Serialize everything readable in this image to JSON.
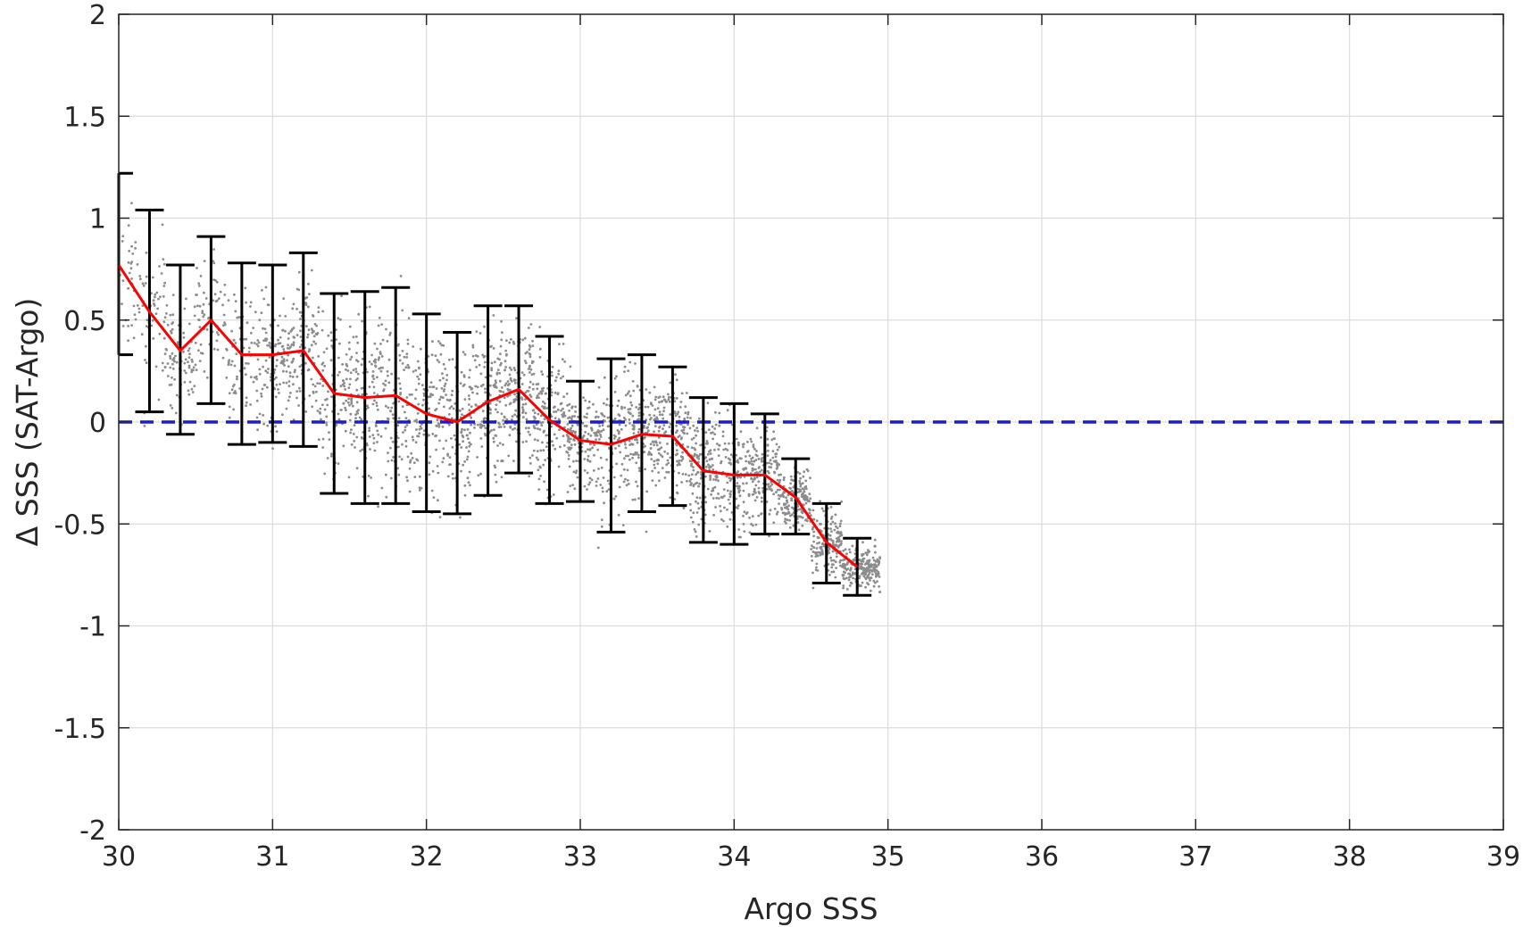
{
  "chart_data": {
    "type": "scatter",
    "title": "",
    "xlabel": "Argo SSS",
    "ylabel": "Δ SSS (SAT-Argo)",
    "xlim": [
      30,
      39
    ],
    "ylim": [
      -2,
      2
    ],
    "grid": true,
    "x_ticks": [
      "30",
      "31",
      "32",
      "33",
      "34",
      "35",
      "36",
      "37",
      "38",
      "39"
    ],
    "y_ticks": [
      "2",
      "1.5",
      "1",
      "0.5",
      "0",
      "-0.5",
      "-1",
      "-1.5",
      "-2"
    ],
    "reference_line": {
      "y": 0,
      "style": "dashed",
      "color": "#1a1adb"
    },
    "colors": {
      "scatter": "#8c8c8c",
      "mean_line": "#ff0000",
      "error_bars": "#000000",
      "grid": "#dcdcdc",
      "axes": "#262626"
    },
    "scatter": {
      "description_points": "dense cloud of individual collocation differences",
      "x_range": [
        30,
        34.9
      ],
      "trend": {
        "slope": -0.3,
        "intercept_at_30": 0.7,
        "spread": 0.45
      }
    },
    "binned_mean": {
      "x": [
        30.0,
        30.2,
        30.4,
        30.6,
        30.8,
        31.0,
        31.2,
        31.4,
        31.6,
        31.8,
        32.0,
        32.2,
        32.4,
        32.6,
        32.8,
        33.0,
        33.2,
        33.4,
        33.6,
        33.8,
        34.0,
        34.2,
        34.4,
        34.6,
        34.8
      ],
      "mean": [
        0.77,
        0.54,
        0.35,
        0.5,
        0.33,
        0.33,
        0.35,
        0.14,
        0.12,
        0.13,
        0.04,
        0.0,
        0.1,
        0.16,
        0.01,
        -0.09,
        -0.11,
        -0.06,
        -0.07,
        -0.24,
        -0.26,
        -0.26,
        -0.37,
        -0.59,
        -0.71
      ],
      "upper": [
        1.22,
        1.04,
        0.77,
        0.91,
        0.78,
        0.77,
        0.83,
        0.63,
        0.64,
        0.66,
        0.53,
        0.44,
        0.57,
        0.57,
        0.42,
        0.2,
        0.31,
        0.33,
        0.27,
        0.12,
        0.09,
        0.04,
        -0.18,
        -0.4,
        -0.57
      ],
      "lower": [
        0.33,
        0.05,
        -0.06,
        0.09,
        -0.11,
        -0.1,
        -0.12,
        -0.35,
        -0.4,
        -0.4,
        -0.44,
        -0.45,
        -0.36,
        -0.25,
        -0.4,
        -0.39,
        -0.54,
        -0.44,
        -0.41,
        -0.59,
        -0.6,
        -0.55,
        -0.55,
        -0.79,
        -0.85
      ]
    }
  }
}
